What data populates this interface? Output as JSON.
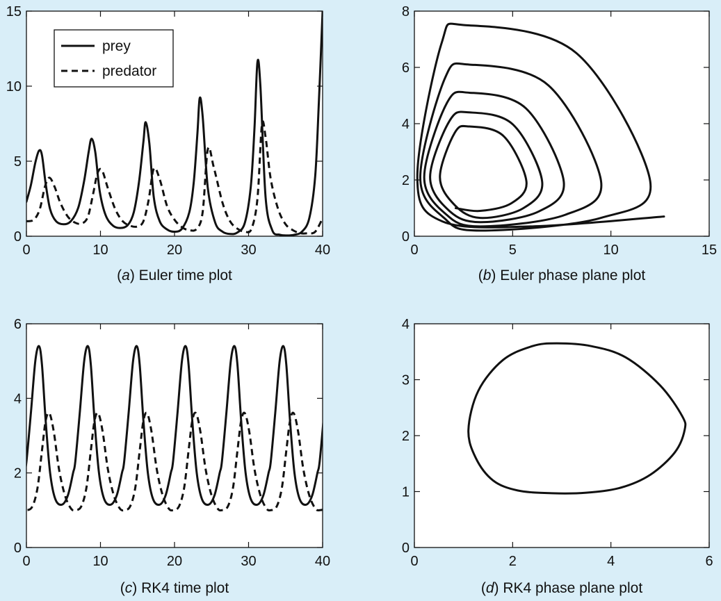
{
  "chart_data": [
    {
      "id": "a",
      "type": "line",
      "caption_letter": "a",
      "caption_text": " Euler time plot",
      "xlim": [
        0,
        40
      ],
      "ylim": [
        0,
        15
      ],
      "xticks": [
        0,
        10,
        20,
        30,
        40
      ],
      "yticks": [
        0,
        5,
        10,
        15
      ],
      "legend": {
        "placement": "top-left",
        "entries": [
          {
            "label": "prey",
            "style": "solid"
          },
          {
            "label": "predator",
            "style": "dashed"
          }
        ]
      },
      "series": [
        {
          "name": "prey",
          "style": "solid",
          "color": "#111111",
          "x": [
            0,
            0.6,
            1.2,
            1.7,
            2.1,
            2.6,
            3.2,
            4,
            5,
            6,
            7,
            7.8,
            8.4,
            8.8,
            9.3,
            9.9,
            10.7,
            11.7,
            12.7,
            13.7,
            14.5,
            15.2,
            15.8,
            16.1,
            16.6,
            17.2,
            18,
            19,
            20,
            21,
            22,
            22.6,
            23.1,
            23.4,
            23.8,
            24.5,
            25.5,
            26.5,
            27.5,
            28.5,
            29.5,
            30.3,
            30.8,
            31.2,
            31.6,
            32.3,
            33.2,
            34.2,
            35.2,
            36.2,
            37.2,
            38.2,
            39,
            39.5,
            40
          ],
          "y": [
            2.3,
            3.4,
            4.9,
            5.7,
            5.4,
            3.5,
            1.8,
            1.0,
            0.8,
            1.0,
            1.9,
            3.7,
            5.6,
            6.5,
            5.6,
            3.0,
            1.4,
            0.7,
            0.55,
            0.75,
            1.6,
            3.6,
            6.3,
            7.6,
            6.2,
            2.6,
            1.0,
            0.45,
            0.3,
            0.5,
            1.6,
            3.6,
            6.9,
            9.2,
            8.0,
            3.2,
            0.9,
            0.3,
            0.15,
            0.25,
            0.9,
            3.3,
            7.2,
            11.6,
            10.0,
            2.6,
            0.4,
            0.1,
            0.05,
            0.1,
            0.3,
            1.2,
            4.0,
            9.0,
            15.0
          ]
        },
        {
          "name": "predator",
          "style": "dashed",
          "color": "#111111",
          "x": [
            0,
            1,
            1.8,
            2.5,
            3.1,
            3.8,
            4.6,
            5.6,
            6.6,
            7.5,
            8.3,
            9,
            9.6,
            10.2,
            11,
            12,
            13,
            14,
            15,
            15.8,
            16.5,
            17.2,
            18,
            19,
            20,
            21,
            22,
            23,
            23.8,
            24.5,
            25.3,
            26.5,
            27.5,
            28.5,
            29.5,
            30.4,
            31.2,
            31.8,
            32.3,
            33,
            34,
            35,
            36,
            37,
            38,
            39,
            40
          ],
          "y": [
            1.0,
            1.1,
            1.8,
            3.3,
            3.9,
            3.3,
            2.2,
            1.3,
            0.9,
            0.85,
            1.3,
            2.8,
            4.2,
            4.4,
            3.2,
            1.8,
            1.0,
            0.7,
            0.65,
            1.0,
            2.4,
            4.5,
            3.8,
            2.0,
            1.1,
            0.6,
            0.4,
            0.5,
            1.6,
            5.8,
            4.6,
            2.2,
            1.0,
            0.5,
            0.3,
            0.5,
            2.5,
            7.4,
            6.6,
            3.8,
            1.8,
            0.8,
            0.4,
            0.2,
            0.2,
            0.3,
            1.2
          ]
        }
      ]
    },
    {
      "id": "b",
      "type": "line",
      "caption_letter": "b",
      "caption_text": " Euler phase plane plot",
      "xlim": [
        0,
        15
      ],
      "ylim": [
        0,
        8
      ],
      "xticks": [
        0,
        5,
        10,
        15
      ],
      "yticks": [
        0,
        2,
        4,
        6,
        8
      ],
      "series": [
        {
          "name": "",
          "style": "solid",
          "color": "#111111",
          "mode": "spiral",
          "center": [
            3.0,
            2.0
          ],
          "start": [
            2.1,
            1.0
          ],
          "end": [
            12.7,
            0.7
          ],
          "loops": [
            {
              "xmin": 1.3,
              "xmax": 5.7,
              "ymin": 0.9,
              "ymax": 3.9,
              "xtop": 2.8
            },
            {
              "xmin": 0.8,
              "xmax": 6.5,
              "ymin": 0.65,
              "ymax": 4.4,
              "xtop": 2.8
            },
            {
              "xmin": 0.5,
              "xmax": 7.6,
              "ymin": 0.5,
              "ymax": 5.1,
              "xtop": 2.8
            },
            {
              "xmin": 0.3,
              "xmax": 9.5,
              "ymin": 0.35,
              "ymax": 6.1,
              "xtop": 2.8
            },
            {
              "xmin": 0.15,
              "xmax": 12.0,
              "ymin": 0.2,
              "ymax": 7.5,
              "xtop": 2.6
            }
          ]
        }
      ]
    },
    {
      "id": "c",
      "type": "line",
      "caption_letter": "c",
      "caption_text": " RK4 time plot",
      "xlim": [
        0,
        40
      ],
      "ylim": [
        0,
        6
      ],
      "xticks": [
        0,
        10,
        20,
        30,
        40
      ],
      "yticks": [
        0,
        2,
        4,
        6
      ],
      "period": 6.6,
      "series": [
        {
          "name": "prey",
          "style": "solid",
          "color": "#111111",
          "t0": 0,
          "phase_x": [
            0,
            0.6,
            1.2,
            1.7,
            2.1,
            2.6,
            3.2,
            3.9,
            4.8,
            5.6,
            6.3,
            6.6
          ],
          "phase_y": [
            2.3,
            3.6,
            5.0,
            5.4,
            4.9,
            3.4,
            2.0,
            1.3,
            1.15,
            1.4,
            2.0,
            2.3
          ]
        },
        {
          "name": "predator",
          "style": "dashed",
          "color": "#111111",
          "t0": 0,
          "phase_x": [
            0,
            0.8,
            1.5,
            2.1,
            2.6,
            3.1,
            3.7,
            4.4,
            5.2,
            6,
            6.6
          ],
          "phase_y": [
            1.0,
            1.1,
            1.6,
            2.6,
            3.4,
            3.6,
            3.1,
            2.1,
            1.4,
            1.05,
            1.0
          ]
        }
      ]
    },
    {
      "id": "d",
      "type": "line",
      "caption_letter": "d",
      "caption_text": " RK4 phase plane plot",
      "xlim": [
        0,
        6
      ],
      "ylim": [
        0,
        4
      ],
      "xticks": [
        0,
        2,
        4,
        6
      ],
      "yticks": [
        0,
        1,
        2,
        3,
        4
      ],
      "series": [
        {
          "name": "",
          "style": "solid",
          "color": "#111111",
          "mode": "closed",
          "x": [
            1.1,
            1.3,
            1.8,
            2.4,
            2.9,
            3.6,
            4.3,
            5.0,
            5.45,
            5.5,
            5.3,
            4.8,
            4.2,
            3.5,
            2.8,
            2.1,
            1.6,
            1.25,
            1.1
          ],
          "y": [
            2.1,
            2.8,
            3.35,
            3.6,
            3.65,
            3.6,
            3.4,
            2.9,
            2.35,
            2.1,
            1.7,
            1.3,
            1.07,
            0.98,
            0.97,
            1.02,
            1.2,
            1.6,
            2.1
          ]
        }
      ]
    }
  ]
}
